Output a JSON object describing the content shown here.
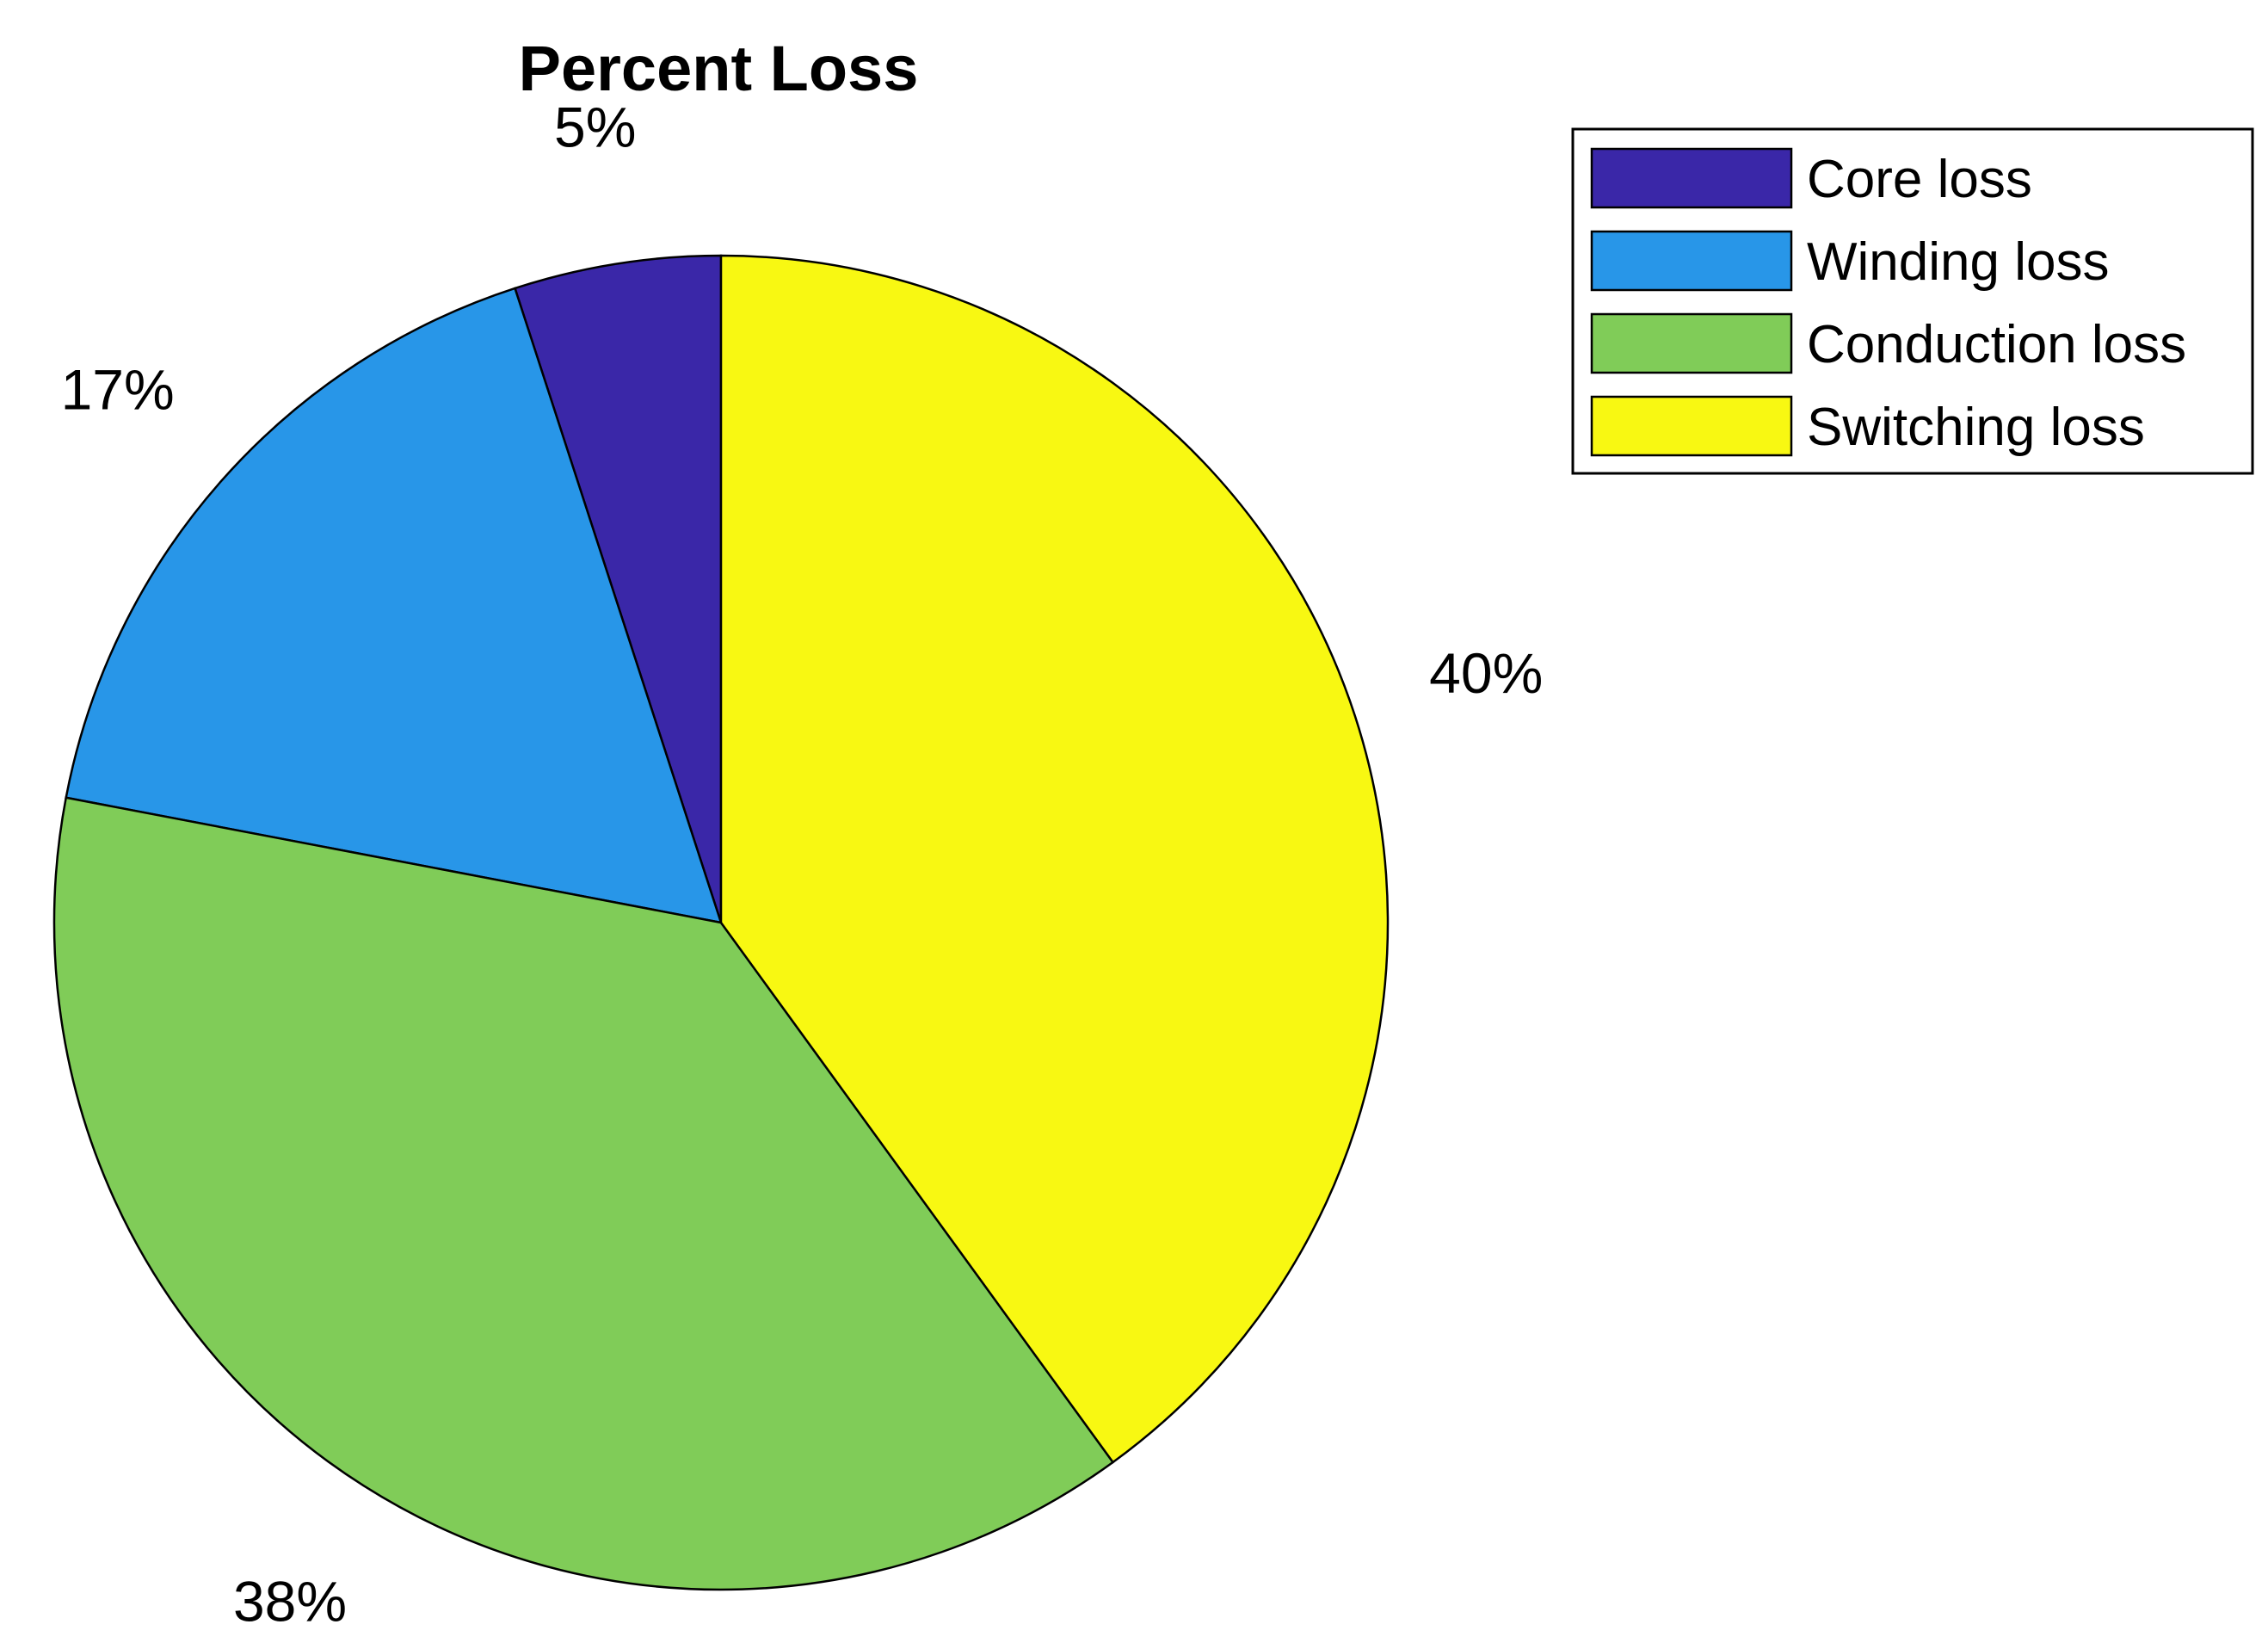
{
  "chart_data": {
    "type": "pie",
    "title": "Percent Loss",
    "categories": [
      "Core loss",
      "Winding loss",
      "Conduction loss",
      "Switching loss"
    ],
    "values": [
      5,
      17,
      38,
      40
    ],
    "labels": [
      "5%",
      "17%",
      "38%",
      "40%"
    ],
    "colors": [
      "#3A27A8",
      "#2896E8",
      "#80CC58",
      "#F8F812"
    ],
    "start_angle": "top",
    "direction": "counter-clockwise",
    "legend_position": "top-right"
  }
}
